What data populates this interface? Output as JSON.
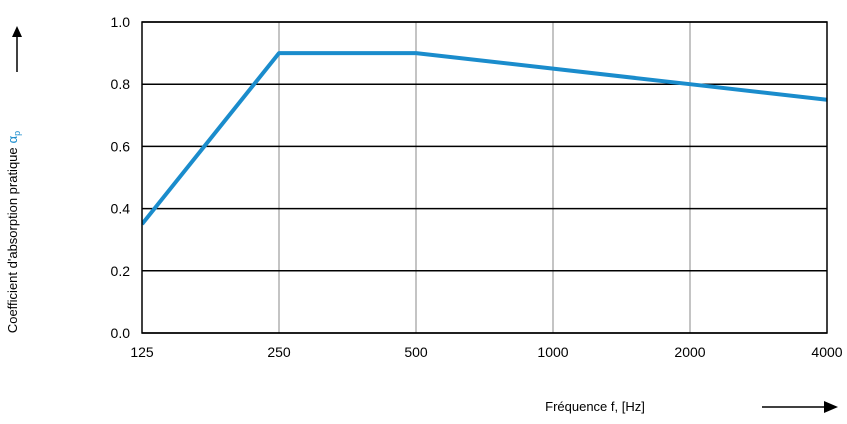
{
  "colors": {
    "series": "#1a8ccc",
    "symbol": "#1a8ccc",
    "grid": "#b0b0b0",
    "major_grid": "#000000",
    "text": "#000000"
  },
  "chart_data": {
    "type": "line",
    "title": "",
    "xlabel": "Fréquence f, [Hz]",
    "ylabel": "Coefficient d'absorption pratique",
    "ylabel_symbol": "α",
    "ylabel_subscript": "p",
    "x": [
      "125",
      "250",
      "500",
      "1000",
      "2000",
      "4000"
    ],
    "y_ticks": [
      "0.0",
      "0.2",
      "0.4",
      "0.6",
      "0.8",
      "1.0"
    ],
    "ylim": [
      0,
      1
    ],
    "grid": true,
    "legend": "none",
    "series": [
      {
        "values": [
          0.35,
          0.9,
          0.9,
          0.85,
          0.8,
          0.75
        ]
      }
    ]
  }
}
